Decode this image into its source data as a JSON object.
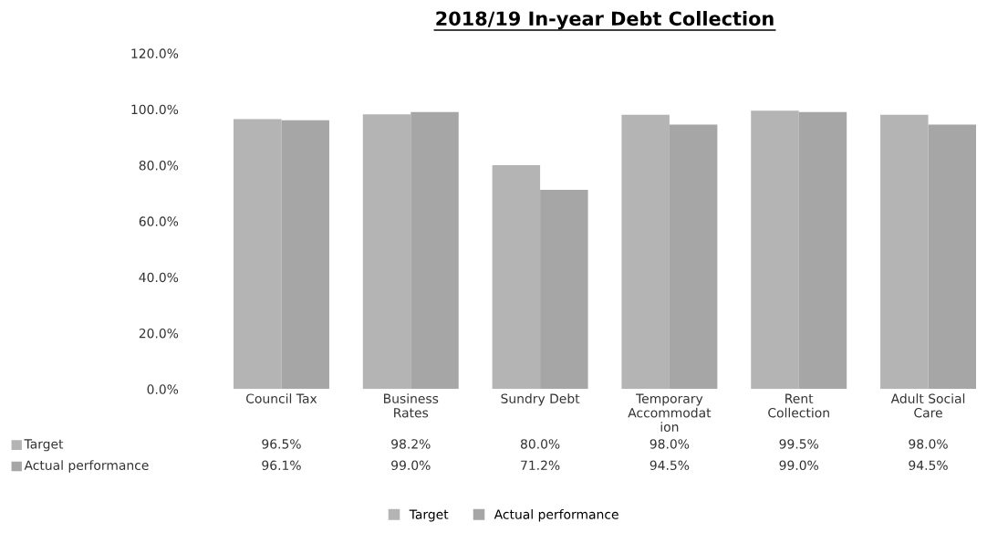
{
  "chart_data": {
    "type": "bar",
    "title": "2018/19 In-year Debt Collection",
    "categories": [
      "Council Tax",
      "Business\nRates",
      "Sundry Debt",
      "Temporary\nAccommodat\nion",
      "Rent\nCollection",
      "Adult Social\nCare"
    ],
    "series": [
      {
        "name": "Target",
        "color": "#b4b4b4",
        "values": [
          96.5,
          98.2,
          80.0,
          98.0,
          99.5,
          98.0
        ],
        "value_labels": [
          "96.5%",
          "98.2%",
          "80.0%",
          "98.0%",
          "99.5%",
          "98.0%"
        ]
      },
      {
        "name": "Actual performance",
        "color": "#a6a6a6",
        "values": [
          96.1,
          99.0,
          71.2,
          94.5,
          99.0,
          94.5
        ],
        "value_labels": [
          "96.1%",
          "99.0%",
          "71.2%",
          "94.5%",
          "99.0%",
          "94.5%"
        ]
      }
    ],
    "ylim": [
      0,
      120
    ],
    "yticks": [
      {
        "value": 0,
        "label": "0.0%"
      },
      {
        "value": 20,
        "label": "20.0%"
      },
      {
        "value": 40,
        "label": "40.0%"
      },
      {
        "value": 60,
        "label": "60.0%"
      },
      {
        "value": 80,
        "label": "80.0%"
      },
      {
        "value": 100,
        "label": "100.0%"
      },
      {
        "value": 120,
        "label": "120.0%"
      }
    ],
    "grid": false,
    "legend": "bottom"
  }
}
